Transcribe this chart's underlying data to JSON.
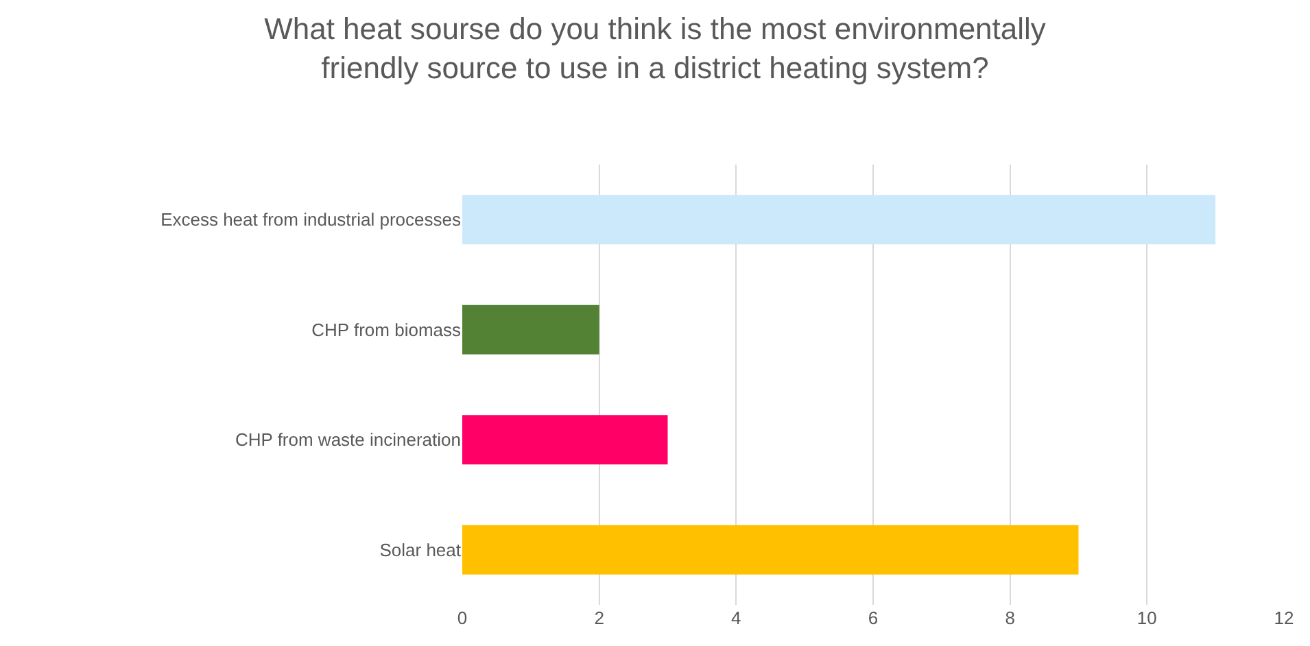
{
  "chart_data": {
    "type": "bar",
    "orientation": "horizontal",
    "title": "What heat sourse do you think is the most environmentally friendly source to use in a district heating system?",
    "categories": [
      "Excess heat from industrial processes",
      "CHP from biomass",
      "CHP from waste incineration",
      "Solar heat"
    ],
    "values": [
      11,
      2,
      3,
      9
    ],
    "colors": [
      "#cce8fb",
      "#548235",
      "#ff0066",
      "#ffc000"
    ],
    "xlim": [
      0,
      12
    ],
    "xticks": [
      0,
      2,
      4,
      6,
      8,
      10,
      12
    ],
    "grid": "x",
    "legend": false
  }
}
